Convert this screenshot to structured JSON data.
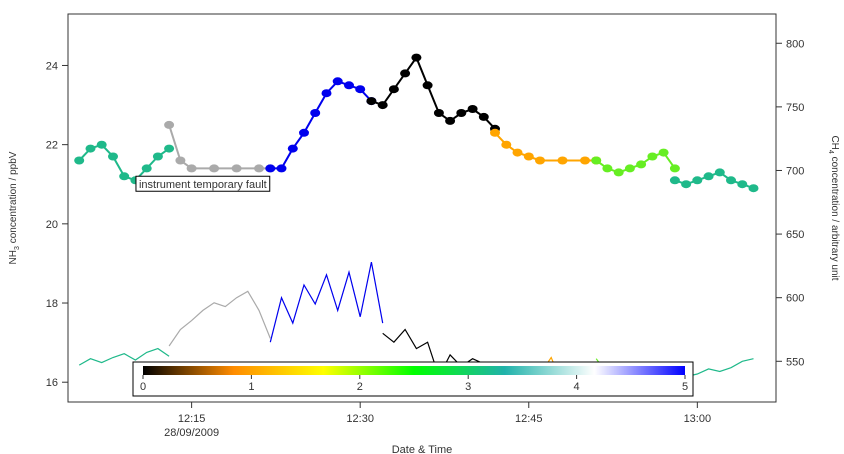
{
  "chart_data": {
    "type": "scatter",
    "title": "",
    "xlabel": "Date & Time",
    "xlim": [
      "12:04",
      "13:07"
    ],
    "x_ticks": [
      {
        "label": "12:15",
        "sublabel": "28/09/2009",
        "time": "12:15"
      },
      {
        "label": "12:30",
        "sublabel": "",
        "time": "12:30"
      },
      {
        "label": "12:45",
        "sublabel": "",
        "time": "12:45"
      },
      {
        "label": "13:00",
        "sublabel": "",
        "time": "13:00"
      }
    ],
    "ylabel_left": "NH3 concentration / ppbV",
    "ylabel_left_parts": {
      "base": "NH",
      "sub": "3",
      "rest": " concentration / ppbV"
    },
    "ylim_left": [
      15.5,
      25.3
    ],
    "y_ticks_left": [
      16,
      18,
      20,
      22,
      24
    ],
    "ylabel_right": "CH4 concentration / arbitrary unit",
    "ylabel_right_parts": {
      "base": "CH",
      "sub": "4",
      "rest": " concentration / arbitrary unit"
    },
    "ylim_right": [
      518,
      823
    ],
    "y_ticks_right": [
      550,
      600,
      650,
      700,
      750,
      800
    ],
    "grid": false,
    "annotation": {
      "text": "instrument temporary fault",
      "time": "12:16",
      "value": 21.0
    },
    "colorbar": {
      "ticks": [
        0,
        1,
        2,
        3,
        4,
        5
      ],
      "stops": [
        "#000000",
        "#ff8c00",
        "#ffff00",
        "#00ff00",
        "#20b2aa",
        "#ffffff",
        "#0000ff"
      ]
    },
    "series": [
      {
        "axis": "left",
        "style": "points",
        "segments": [
          {
            "color": "#1fb98a",
            "points": [
              [
                "12:05",
                21.6
              ],
              [
                "12:06",
                21.9
              ],
              [
                "12:07",
                22.0
              ],
              [
                "12:08",
                21.7
              ],
              [
                "12:09",
                21.2
              ],
              [
                "12:10",
                21.1
              ],
              [
                "12:11",
                21.4
              ],
              [
                "12:12",
                21.7
              ],
              [
                "12:13",
                21.9
              ]
            ]
          },
          {
            "color": "#aaaaaa",
            "points": [
              [
                "12:13",
                22.5
              ],
              [
                "12:14",
                21.6
              ],
              [
                "12:15",
                21.4
              ],
              [
                "12:17",
                21.4
              ],
              [
                "12:19",
                21.4
              ],
              [
                "12:21",
                21.4
              ],
              [
                "12:22",
                21.4
              ]
            ]
          },
          {
            "color": "#0000ee",
            "points": [
              [
                "12:22",
                21.4
              ],
              [
                "12:23",
                21.4
              ],
              [
                "12:24",
                21.9
              ],
              [
                "12:25",
                22.3
              ],
              [
                "12:26",
                22.8
              ],
              [
                "12:27",
                23.3
              ],
              [
                "12:28",
                23.6
              ],
              [
                "12:29",
                23.5
              ],
              [
                "12:30",
                23.4
              ],
              [
                "12:31",
                23.1
              ]
            ]
          },
          {
            "color": "#000000",
            "points": [
              [
                "12:31",
                23.1
              ],
              [
                "12:32",
                23.0
              ],
              [
                "12:33",
                23.4
              ],
              [
                "12:34",
                23.8
              ],
              [
                "12:35",
                24.2
              ],
              [
                "12:36",
                23.5
              ],
              [
                "12:37",
                22.8
              ],
              [
                "12:38",
                22.6
              ],
              [
                "12:39",
                22.8
              ],
              [
                "12:40",
                22.9
              ],
              [
                "12:41",
                22.7
              ],
              [
                "12:42",
                22.4
              ]
            ]
          },
          {
            "color": "#ffa500",
            "points": [
              [
                "12:42",
                22.3
              ],
              [
                "12:43",
                22.0
              ],
              [
                "12:44",
                21.8
              ],
              [
                "12:45",
                21.7
              ],
              [
                "12:46",
                21.6
              ],
              [
                "12:48",
                21.6
              ],
              [
                "12:50",
                21.6
              ],
              [
                "12:51",
                21.6
              ]
            ]
          },
          {
            "color": "#66ee22",
            "points": [
              [
                "12:51",
                21.6
              ],
              [
                "12:52",
                21.4
              ],
              [
                "12:53",
                21.3
              ],
              [
                "12:54",
                21.4
              ],
              [
                "12:55",
                21.5
              ],
              [
                "12:56",
                21.7
              ],
              [
                "12:57",
                21.8
              ],
              [
                "12:58",
                21.4
              ]
            ]
          },
          {
            "color": "#1fb98a",
            "points": [
              [
                "12:58",
                21.1
              ],
              [
                "12:59",
                21.0
              ],
              [
                "13:00",
                21.1
              ],
              [
                "13:01",
                21.2
              ],
              [
                "13:02",
                21.3
              ],
              [
                "13:03",
                21.1
              ],
              [
                "13:04",
                21.0
              ],
              [
                "13:05",
                20.9
              ]
            ]
          }
        ]
      },
      {
        "axis": "right",
        "style": "line",
        "segments": [
          {
            "color": "#1fb98a",
            "points": [
              [
                "12:05",
                547
              ],
              [
                "12:06",
                552
              ],
              [
                "12:07",
                549
              ],
              [
                "12:08",
                553
              ],
              [
                "12:09",
                556
              ],
              [
                "12:10",
                551
              ],
              [
                "12:11",
                557
              ],
              [
                "12:12",
                560
              ],
              [
                "12:13",
                554
              ]
            ]
          },
          {
            "color": "#aaaaaa",
            "points": [
              [
                "12:13",
                562
              ],
              [
                "12:14",
                575
              ],
              [
                "12:15",
                582
              ],
              [
                "12:16",
                590
              ],
              [
                "12:17",
                596
              ],
              [
                "12:18",
                593
              ],
              [
                "12:19",
                600
              ],
              [
                "12:20",
                605
              ],
              [
                "12:21",
                590
              ],
              [
                "12:22",
                568
              ]
            ]
          },
          {
            "color": "#0000ee",
            "points": [
              [
                "12:22",
                565
              ],
              [
                "12:23",
                600
              ],
              [
                "12:24",
                580
              ],
              [
                "12:25",
                610
              ],
              [
                "12:26",
                595
              ],
              [
                "12:27",
                618
              ],
              [
                "12:28",
                590
              ],
              [
                "12:29",
                620
              ],
              [
                "12:30",
                585
              ],
              [
                "12:31",
                628
              ],
              [
                "12:32",
                580
              ]
            ]
          },
          {
            "color": "#000000",
            "points": [
              [
                "12:32",
                572
              ],
              [
                "12:33",
                565
              ],
              [
                "12:34",
                575
              ],
              [
                "12:35",
                560
              ],
              [
                "12:36",
                565
              ],
              [
                "12:37",
                538
              ],
              [
                "12:38",
                555
              ],
              [
                "12:39",
                546
              ],
              [
                "12:40",
                552
              ],
              [
                "12:41",
                548
              ]
            ]
          },
          {
            "color": "#ffa500",
            "points": [
              [
                "12:41",
                546
              ],
              [
                "12:42",
                540
              ],
              [
                "12:43",
                548
              ],
              [
                "12:44",
                535
              ],
              [
                "12:45",
                545
              ],
              [
                "12:46",
                540
              ],
              [
                "12:47",
                553
              ],
              [
                "12:48",
                532
              ],
              [
                "12:49",
                545
              ],
              [
                "12:50",
                537
              ],
              [
                "12:51",
                548
              ]
            ]
          },
          {
            "color": "#66ee22",
            "points": [
              [
                "12:51",
                552
              ],
              [
                "12:52",
                540
              ],
              [
                "12:53",
                545
              ],
              [
                "12:54",
                538
              ],
              [
                "12:55",
                542
              ],
              [
                "12:56",
                540
              ],
              [
                "12:57",
                538
              ],
              [
                "12:58",
                541
              ]
            ]
          },
          {
            "color": "#1fb98a",
            "points": [
              [
                "12:58",
                542
              ],
              [
                "12:59",
                538
              ],
              [
                "13:00",
                540
              ],
              [
                "13:01",
                544
              ],
              [
                "13:02",
                542
              ],
              [
                "13:03",
                545
              ],
              [
                "13:04",
                550
              ],
              [
                "13:05",
                552
              ]
            ]
          }
        ]
      }
    ]
  }
}
